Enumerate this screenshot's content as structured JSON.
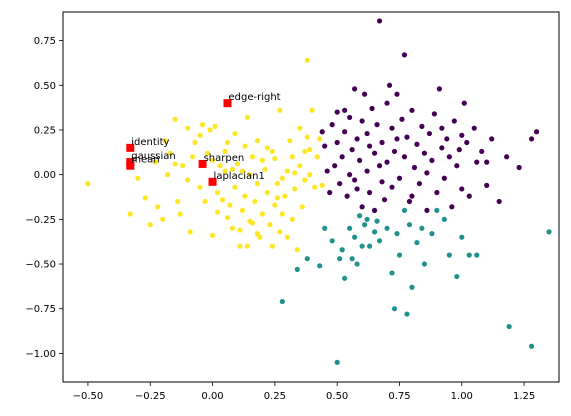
{
  "chart_data": {
    "type": "scatter",
    "title": "",
    "xlabel": "",
    "ylabel": "",
    "xlim": [
      -0.6,
      1.39
    ],
    "ylim": [
      -1.16,
      0.91
    ],
    "xticks": [
      -0.5,
      -0.25,
      0.0,
      0.25,
      0.5,
      0.75,
      1.0,
      1.25
    ],
    "xtick_labels": [
      "−0.50",
      "−0.25",
      "0.00",
      "0.25",
      "0.50",
      "0.75",
      "1.00",
      "1.25"
    ],
    "yticks": [
      0.75,
      0.5,
      0.25,
      0.0,
      -0.25,
      -0.5,
      -0.75,
      -1.0
    ],
    "ytick_labels": [
      "0.75",
      "0.50",
      "0.25",
      "0.00",
      "−0.25",
      "−0.50",
      "−0.75",
      "−1.00"
    ],
    "grid": false,
    "legend": null,
    "colors": {
      "yellow": "#fde725",
      "purple": "#440154",
      "teal": "#21918c",
      "marker": "#ff0000"
    },
    "series": [
      {
        "color": "yellow",
        "points": [
          [
            -0.5,
            -0.05
          ],
          [
            -0.33,
            -0.22
          ],
          [
            -0.27,
            -0.13
          ],
          [
            -0.25,
            -0.28
          ],
          [
            -0.22,
            -0.18
          ],
          [
            -0.2,
            -0.25
          ],
          [
            -0.17,
            0.12
          ],
          [
            -0.15,
            0.31
          ],
          [
            -0.15,
            0.06
          ],
          [
            -0.13,
            -0.22
          ],
          [
            -0.12,
            0.05
          ],
          [
            -0.1,
            0.26
          ],
          [
            -0.1,
            -0.03
          ],
          [
            -0.09,
            -0.32
          ],
          [
            -0.07,
            0.18
          ],
          [
            -0.05,
            0.22
          ],
          [
            -0.05,
            -0.07
          ],
          [
            -0.04,
            0.28
          ],
          [
            -0.02,
            0.12
          ],
          [
            -0.01,
            0.25
          ],
          [
            0.0,
            -0.34
          ],
          [
            0.0,
            0.08
          ],
          [
            0.01,
            0.27
          ],
          [
            0.02,
            -0.1
          ],
          [
            0.04,
            -0.14
          ],
          [
            0.05,
            0.13
          ],
          [
            0.05,
            0.02
          ],
          [
            0.06,
            -0.24
          ],
          [
            0.07,
            -0.17
          ],
          [
            0.08,
            -0.3
          ],
          [
            0.09,
            0.23
          ],
          [
            0.09,
            -0.07
          ],
          [
            0.1,
            0.06
          ],
          [
            0.11,
            -0.4
          ],
          [
            0.12,
            -0.2
          ],
          [
            0.13,
            0.16
          ],
          [
            0.13,
            -0.12
          ],
          [
            0.14,
            -0.4
          ],
          [
            0.14,
            0.32
          ],
          [
            0.15,
            0.0
          ],
          [
            0.16,
            -0.27
          ],
          [
            0.16,
            0.1
          ],
          [
            0.17,
            -0.15
          ],
          [
            0.18,
            -0.05
          ],
          [
            0.18,
            0.19
          ],
          [
            0.19,
            -0.35
          ],
          [
            0.2,
            -0.22
          ],
          [
            0.21,
            0.03
          ],
          [
            0.22,
            -0.1
          ],
          [
            0.22,
            0.15
          ],
          [
            0.23,
            -0.28
          ],
          [
            0.24,
            -0.4
          ],
          [
            0.25,
            -0.17
          ],
          [
            0.25,
            0.09
          ],
          [
            0.26,
            -0.05
          ],
          [
            0.27,
            0.36
          ],
          [
            0.27,
            -0.32
          ],
          [
            0.28,
            -0.22
          ],
          [
            0.29,
            -0.12
          ],
          [
            0.3,
            0.02
          ],
          [
            0.3,
            -0.35
          ],
          [
            0.31,
            0.19
          ],
          [
            0.32,
            -0.25
          ],
          [
            0.32,
            0.1
          ],
          [
            0.33,
            -0.08
          ],
          [
            0.34,
            -0.42
          ],
          [
            0.35,
            0.05
          ],
          [
            0.35,
            0.26
          ],
          [
            0.36,
            -0.18
          ],
          [
            0.37,
            0.13
          ],
          [
            0.37,
            -0.03
          ],
          [
            0.38,
            0.21
          ],
          [
            0.38,
            0.64
          ],
          [
            0.39,
            0.0
          ],
          [
            0.4,
            0.36
          ],
          [
            0.41,
            -0.07
          ],
          [
            0.42,
            0.1
          ],
          [
            0.43,
            0.2
          ],
          [
            0.44,
            -0.06
          ],
          [
            -0.23,
            0.07
          ],
          [
            -0.18,
            0.0
          ],
          [
            -0.08,
            0.1
          ],
          [
            -0.03,
            -0.15
          ],
          [
            0.03,
            0.05
          ],
          [
            0.08,
            0.03
          ],
          [
            0.11,
            -0.31
          ],
          [
            0.15,
            -0.26
          ],
          [
            0.2,
            0.08
          ],
          [
            0.24,
            0.13
          ],
          [
            0.28,
            -0.02
          ],
          [
            -0.3,
            -0.02
          ],
          [
            -0.14,
            -0.15
          ],
          [
            0.06,
            0.18
          ],
          [
            0.12,
            0.02
          ],
          [
            0.18,
            -0.33
          ],
          [
            0.26,
            -0.13
          ],
          [
            0.33,
            0.01
          ],
          [
            0.39,
            0.14
          ],
          [
            -0.19,
            0.19
          ],
          [
            0.02,
            -0.21
          ]
        ]
      },
      {
        "color": "purple",
        "points": [
          [
            0.44,
            0.24
          ],
          [
            0.45,
            0.16
          ],
          [
            0.46,
            0.02
          ],
          [
            0.47,
            -0.1
          ],
          [
            0.48,
            0.28
          ],
          [
            0.49,
            0.05
          ],
          [
            0.5,
            0.35
          ],
          [
            0.5,
            0.18
          ],
          [
            0.51,
            -0.05
          ],
          [
            0.52,
            0.1
          ],
          [
            0.53,
            0.24
          ],
          [
            0.54,
            -0.12
          ],
          [
            0.55,
            0.32
          ],
          [
            0.55,
            0.0
          ],
          [
            0.56,
            0.14
          ],
          [
            0.57,
            0.48
          ],
          [
            0.58,
            -0.08
          ],
          [
            0.58,
            0.2
          ],
          [
            0.59,
            0.08
          ],
          [
            0.6,
            0.3
          ],
          [
            0.6,
            -0.18
          ],
          [
            0.61,
            0.45
          ],
          [
            0.62,
            0.02
          ],
          [
            0.62,
            0.23
          ],
          [
            0.63,
            -0.1
          ],
          [
            0.64,
            0.37
          ],
          [
            0.65,
            0.12
          ],
          [
            0.65,
            -0.2
          ],
          [
            0.66,
            0.28
          ],
          [
            0.67,
            0.86
          ],
          [
            0.67,
            0.05
          ],
          [
            0.68,
            0.18
          ],
          [
            0.69,
            -0.14
          ],
          [
            0.7,
            0.4
          ],
          [
            0.7,
            0.07
          ],
          [
            0.71,
            0.5
          ],
          [
            0.72,
            -0.07
          ],
          [
            0.72,
            0.26
          ],
          [
            0.73,
            0.13
          ],
          [
            0.74,
            0.45
          ],
          [
            0.75,
            -0.02
          ],
          [
            0.76,
            0.31
          ],
          [
            0.77,
            0.67
          ],
          [
            0.77,
            0.1
          ],
          [
            0.78,
            0.21
          ],
          [
            0.79,
            -0.15
          ],
          [
            0.8,
            0.36
          ],
          [
            0.81,
            0.04
          ],
          [
            0.82,
            0.17
          ],
          [
            0.83,
            -0.05
          ],
          [
            0.84,
            0.27
          ],
          [
            0.85,
            0.12
          ],
          [
            0.86,
            -0.2
          ],
          [
            0.87,
            0.23
          ],
          [
            0.88,
            0.08
          ],
          [
            0.89,
            0.34
          ],
          [
            0.9,
            -0.1
          ],
          [
            0.91,
            0.48
          ],
          [
            0.92,
            0.15
          ],
          [
            0.93,
            -0.02
          ],
          [
            0.94,
            0.2
          ],
          [
            0.95,
            0.1
          ],
          [
            0.96,
            -0.18
          ],
          [
            0.97,
            0.3
          ],
          [
            0.98,
            0.05
          ],
          [
            0.99,
            0.14
          ],
          [
            1.0,
            -0.08
          ],
          [
            1.01,
            0.4
          ],
          [
            1.02,
            0.18
          ],
          [
            1.03,
            -0.12
          ],
          [
            1.05,
            0.26
          ],
          [
            1.06,
            0.07
          ],
          [
            1.08,
            0.13
          ],
          [
            1.1,
            -0.06
          ],
          [
            1.12,
            0.2
          ],
          [
            1.15,
            -0.15
          ],
          [
            1.18,
            0.1
          ],
          [
            1.23,
            0.04
          ],
          [
            1.28,
            0.2
          ],
          [
            1.3,
            0.24
          ],
          [
            0.53,
            0.36
          ],
          [
            0.57,
            -0.03
          ],
          [
            0.63,
            0.16
          ],
          [
            0.68,
            -0.04
          ],
          [
            0.74,
            0.2
          ],
          [
            0.8,
            -0.12
          ],
          [
            0.86,
            0.01
          ],
          [
            0.92,
            0.26
          ],
          [
            1.0,
            0.22
          ],
          [
            1.1,
            0.07
          ]
        ]
      },
      {
        "color": "teal",
        "points": [
          [
            0.28,
            -0.71
          ],
          [
            0.34,
            -0.53
          ],
          [
            0.38,
            -0.47
          ],
          [
            0.43,
            -0.51
          ],
          [
            0.45,
            -0.3
          ],
          [
            0.48,
            -0.37
          ],
          [
            0.5,
            -1.05
          ],
          [
            0.51,
            -0.47
          ],
          [
            0.52,
            -0.42
          ],
          [
            0.53,
            -0.58
          ],
          [
            0.55,
            -0.3
          ],
          [
            0.56,
            -0.47
          ],
          [
            0.57,
            -0.35
          ],
          [
            0.58,
            -0.5
          ],
          [
            0.59,
            -0.23
          ],
          [
            0.6,
            -0.4
          ],
          [
            0.61,
            -0.28
          ],
          [
            0.62,
            -0.25
          ],
          [
            0.63,
            -0.4
          ],
          [
            0.65,
            -0.32
          ],
          [
            0.67,
            -0.37
          ],
          [
            0.7,
            -0.3
          ],
          [
            0.72,
            -0.55
          ],
          [
            0.73,
            -0.75
          ],
          [
            0.75,
            -0.45
          ],
          [
            0.77,
            -0.2
          ],
          [
            0.78,
            -0.78
          ],
          [
            0.79,
            -0.28
          ],
          [
            0.8,
            -0.63
          ],
          [
            0.82,
            -0.38
          ],
          [
            0.84,
            -0.3
          ],
          [
            0.85,
            -0.5
          ],
          [
            0.88,
            -0.33
          ],
          [
            0.9,
            -0.2
          ],
          [
            0.93,
            -0.25
          ],
          [
            0.98,
            -0.57
          ],
          [
            1.0,
            -0.35
          ],
          [
            1.03,
            -0.45
          ],
          [
            1.06,
            -0.45
          ],
          [
            1.19,
            -0.85
          ],
          [
            1.28,
            -0.96
          ],
          [
            1.35,
            -0.32
          ],
          [
            0.66,
            -0.26
          ],
          [
            0.74,
            -0.33
          ],
          [
            0.95,
            -0.45
          ]
        ]
      }
    ],
    "annotations": [
      {
        "label": "edge-right",
        "x": 0.06,
        "y": 0.4
      },
      {
        "label": "identity",
        "x": -0.33,
        "y": 0.15
      },
      {
        "label": "gaussian",
        "x": -0.33,
        "y": 0.07
      },
      {
        "label": "mean",
        "x": -0.33,
        "y": 0.05
      },
      {
        "label": "sharpen",
        "x": -0.04,
        "y": 0.06
      },
      {
        "label": "laplacian1",
        "x": 0.0,
        "y": -0.04
      }
    ]
  }
}
